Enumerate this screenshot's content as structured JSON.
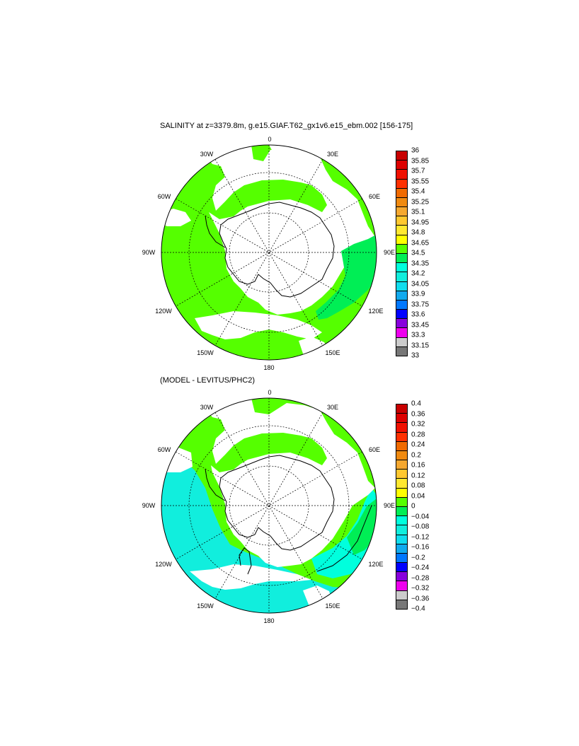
{
  "colors": {
    "ocean_green": "#55ff00",
    "ocean_cyan": "#00ffdd",
    "ocean_cyan2": "#11eedd",
    "land": "#ffffff",
    "nodata": "#ffffff",
    "outline": "#000000"
  },
  "panels": [
    {
      "title": "SALINITY at z=3379.8m, g.e15.GIAF.T62_gx1v6.e15_ebm.002 [156-175]",
      "lon_labels": {
        "n": "0",
        "e30": "30E",
        "e60": "60E",
        "e90": "90E",
        "e120": "120E",
        "e150": "150E",
        "s": "180",
        "w150": "150W",
        "w120": "120W",
        "w90": "90W",
        "w60": "60W",
        "w30": "30W"
      },
      "colorbar": {
        "ticks": [
          "36",
          "35.85",
          "35.7",
          "35.55",
          "35.4",
          "35.25",
          "35.1",
          "34.95",
          "34.8",
          "34.65",
          "34.5",
          "34.35",
          "34.2",
          "34.05",
          "33.9",
          "33.75",
          "33.6",
          "33.45",
          "33.3",
          "33.15",
          "33"
        ],
        "colors": [
          "#c80000",
          "#dd0000",
          "#f01000",
          "#ff3000",
          "#f06a00",
          "#f08a10",
          "#f5a830",
          "#ffc830",
          "#ffe830",
          "#ffff00",
          "#55ff00",
          "#00ee55",
          "#00ffdd",
          "#11eedd",
          "#11ddee",
          "#11aaee",
          "#0077ff",
          "#0000ff",
          "#8800dd",
          "#ee00ee",
          "#cccccc",
          "#777777"
        ]
      }
    },
    {
      "title": "(MODEL - LEVITUS/PHC2)",
      "lon_labels": {
        "n": "0",
        "e30": "30E",
        "e60": "60E",
        "e90": "90E",
        "e120": "120E",
        "e150": "150E",
        "s": "180",
        "w150": "150W",
        "w120": "120W",
        "w90": "90W",
        "w60": "60W",
        "w30": "30W"
      },
      "colorbar": {
        "ticks": [
          "0.4",
          "0.36",
          "0.32",
          "0.28",
          "0.24",
          "0.2",
          "0.16",
          "0.12",
          "0.08",
          "0.04",
          "0",
          "−0.04",
          "−0.08",
          "−0.12",
          "−0.16",
          "−0.2",
          "−0.24",
          "−0.28",
          "−0.32",
          "−0.36",
          "−0.4"
        ],
        "colors": [
          "#c80000",
          "#dd0000",
          "#f01000",
          "#ff3000",
          "#f06a00",
          "#f08a10",
          "#f5a830",
          "#ffc830",
          "#ffe830",
          "#ffff00",
          "#55ff00",
          "#00ee55",
          "#00ffdd",
          "#11eedd",
          "#11ddee",
          "#11aaee",
          "#0077ff",
          "#0000ff",
          "#8800dd",
          "#ee00ee",
          "#cccccc",
          "#777777"
        ]
      }
    }
  ]
}
